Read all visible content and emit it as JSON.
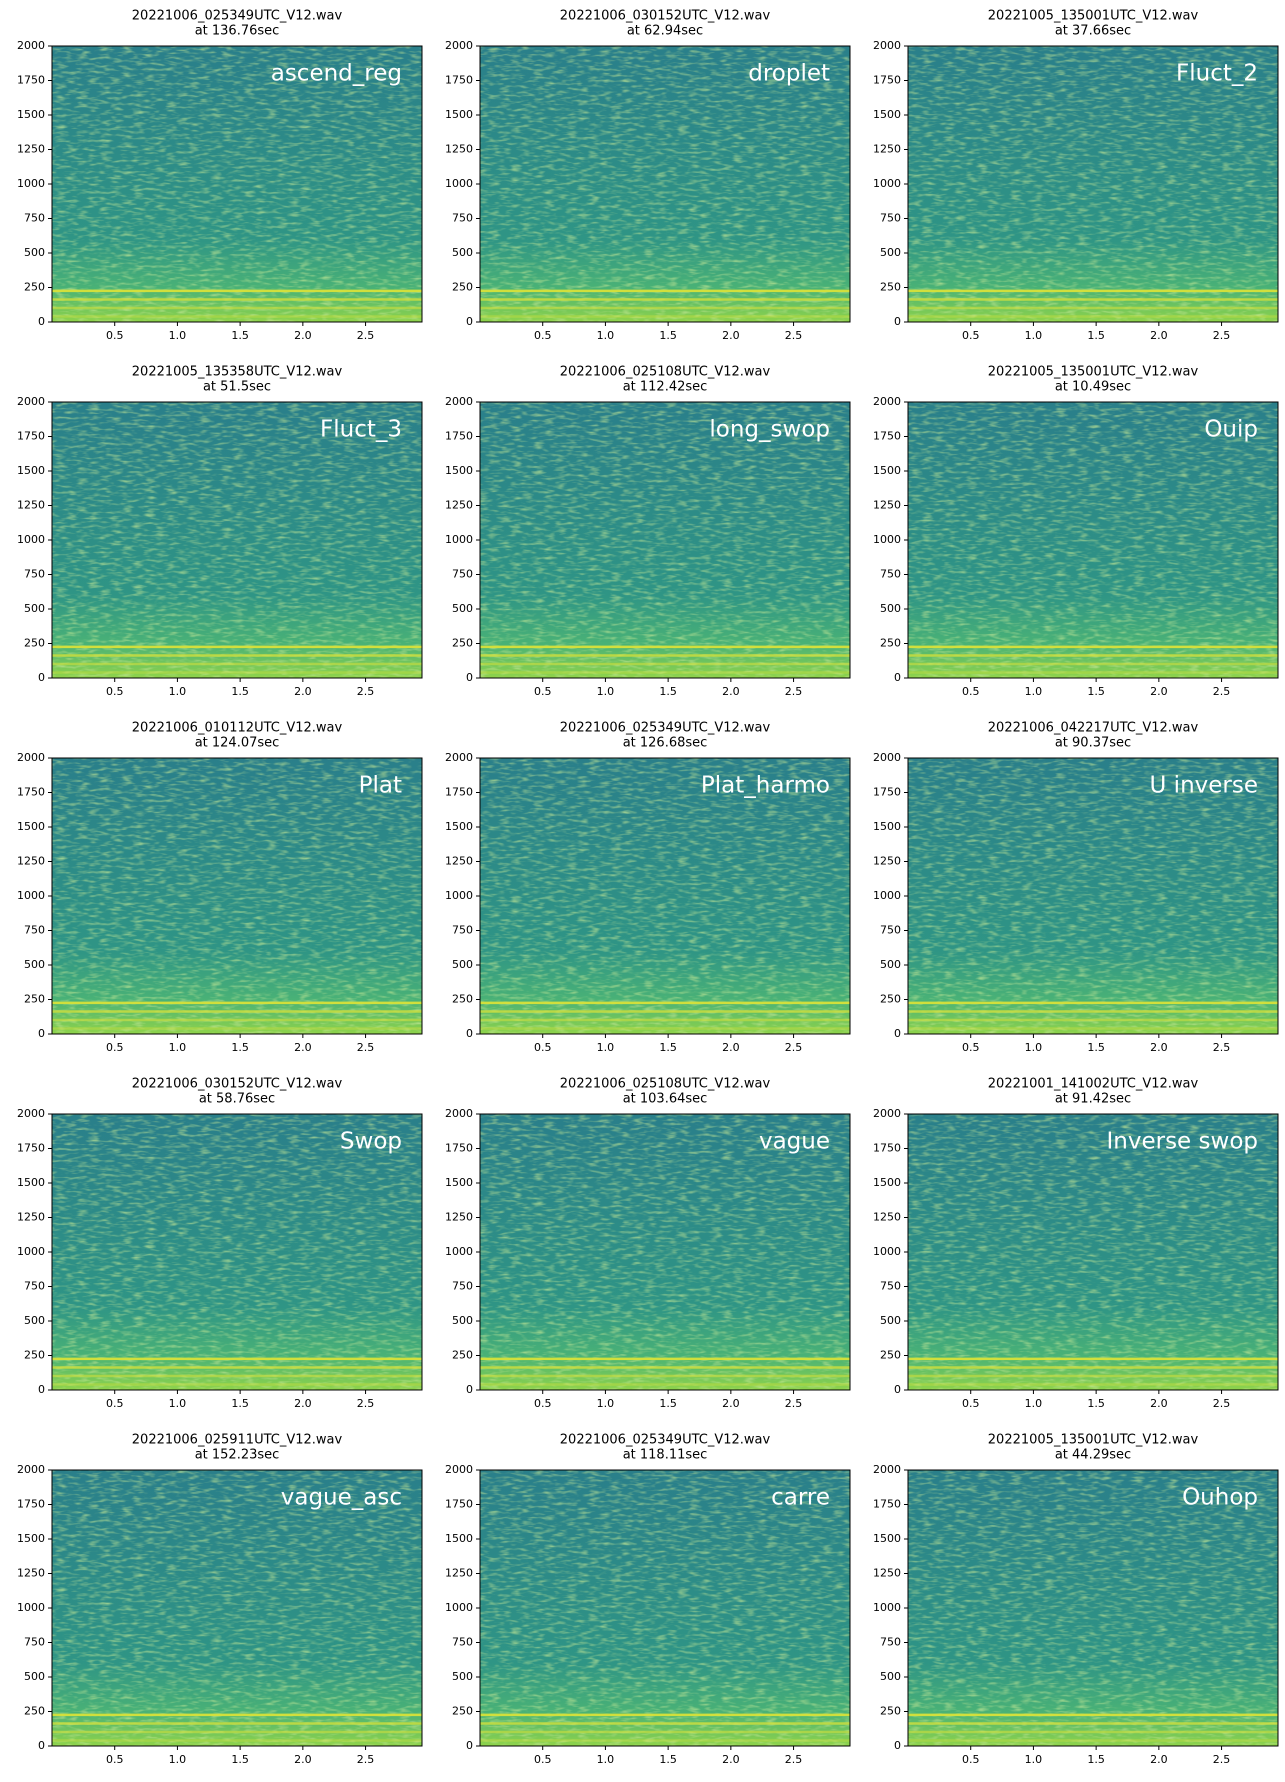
{
  "chart_data": [
    {
      "type": "spectrogram",
      "title": "20221006_025349UTC_V12.wav",
      "subtitle": "at 136.76sec",
      "annotation": "ascend_reg",
      "xlim": [
        0,
        2.95
      ],
      "ylim": [
        0,
        2000
      ],
      "xticks": [
        0.5,
        {
          "value": 1,
          "label": "1.0"
        },
        1.5,
        {
          "value": 2,
          "label": "2.0"
        },
        2.5
      ],
      "yticks": [
        0,
        250,
        500,
        750,
        1000,
        1250,
        1500,
        1750,
        2000
      ]
    },
    {
      "type": "spectrogram",
      "title": "20221006_030152UTC_V12.wav",
      "subtitle": "at 62.94sec",
      "annotation": "droplet",
      "xlim": [
        0,
        2.95
      ],
      "ylim": [
        0,
        2000
      ],
      "xticks": [
        0.5,
        {
          "value": 1,
          "label": "1.0"
        },
        1.5,
        {
          "value": 2,
          "label": "2.0"
        },
        2.5
      ],
      "yticks": [
        0,
        250,
        500,
        750,
        1000,
        1250,
        1500,
        1750,
        2000
      ]
    },
    {
      "type": "spectrogram",
      "title": "20221005_135001UTC_V12.wav",
      "subtitle": "at 37.66sec",
      "annotation": "Fluct_2",
      "xlim": [
        0,
        2.95
      ],
      "ylim": [
        0,
        2000
      ],
      "xticks": [
        0.5,
        {
          "value": 1,
          "label": "1.0"
        },
        1.5,
        {
          "value": 2,
          "label": "2.0"
        },
        2.5
      ],
      "yticks": [
        0,
        250,
        500,
        750,
        1000,
        1250,
        1500,
        1750,
        2000
      ]
    },
    {
      "type": "spectrogram",
      "title": "20221005_135358UTC_V12.wav",
      "subtitle": "at 51.5sec",
      "annotation": "Fluct_3",
      "xlim": [
        0,
        2.95
      ],
      "ylim": [
        0,
        2000
      ],
      "xticks": [
        0.5,
        {
          "value": 1,
          "label": "1.0"
        },
        1.5,
        {
          "value": 2,
          "label": "2.0"
        },
        2.5
      ],
      "yticks": [
        0,
        250,
        500,
        750,
        1000,
        1250,
        1500,
        1750,
        2000
      ]
    },
    {
      "type": "spectrogram",
      "title": "20221006_025108UTC_V12.wav",
      "subtitle": "at 112.42sec",
      "annotation": "long_swop",
      "xlim": [
        0,
        2.95
      ],
      "ylim": [
        0,
        2000
      ],
      "xticks": [
        0.5,
        {
          "value": 1,
          "label": "1.0"
        },
        1.5,
        {
          "value": 2,
          "label": "2.0"
        },
        2.5
      ],
      "yticks": [
        0,
        250,
        500,
        750,
        1000,
        1250,
        1500,
        1750,
        2000
      ]
    },
    {
      "type": "spectrogram",
      "title": "20221005_135001UTC_V12.wav",
      "subtitle": "at 10.49sec",
      "annotation": "Ouip",
      "xlim": [
        0,
        2.95
      ],
      "ylim": [
        0,
        2000
      ],
      "xticks": [
        0.5,
        {
          "value": 1,
          "label": "1.0"
        },
        1.5,
        {
          "value": 2,
          "label": "2.0"
        },
        2.5
      ],
      "yticks": [
        0,
        250,
        500,
        750,
        1000,
        1250,
        1500,
        1750,
        2000
      ]
    },
    {
      "type": "spectrogram",
      "title": "20221006_010112UTC_V12.wav",
      "subtitle": "at 124.07sec",
      "annotation": "Plat",
      "xlim": [
        0,
        2.95
      ],
      "ylim": [
        0,
        2000
      ],
      "xticks": [
        0.5,
        {
          "value": 1,
          "label": "1.0"
        },
        1.5,
        {
          "value": 2,
          "label": "2.0"
        },
        2.5
      ],
      "yticks": [
        0,
        250,
        500,
        750,
        1000,
        1250,
        1500,
        1750,
        2000
      ]
    },
    {
      "type": "spectrogram",
      "title": "20221006_025349UTC_V12.wav",
      "subtitle": "at 126.68sec",
      "annotation": "Plat_harmo",
      "xlim": [
        0,
        2.95
      ],
      "ylim": [
        0,
        2000
      ],
      "xticks": [
        0.5,
        {
          "value": 1,
          "label": "1.0"
        },
        1.5,
        {
          "value": 2,
          "label": "2.0"
        },
        2.5
      ],
      "yticks": [
        0,
        250,
        500,
        750,
        1000,
        1250,
        1500,
        1750,
        2000
      ]
    },
    {
      "type": "spectrogram",
      "title": "20221006_042217UTC_V12.wav",
      "subtitle": "at 90.37sec",
      "annotation": "U inverse",
      "xlim": [
        0,
        2.95
      ],
      "ylim": [
        0,
        2000
      ],
      "xticks": [
        0.5,
        {
          "value": 1,
          "label": "1.0"
        },
        1.5,
        {
          "value": 2,
          "label": "2.0"
        },
        2.5
      ],
      "yticks": [
        0,
        250,
        500,
        750,
        1000,
        1250,
        1500,
        1750,
        2000
      ]
    },
    {
      "type": "spectrogram",
      "title": "20221006_030152UTC_V12.wav",
      "subtitle": "at 58.76sec",
      "annotation": "Swop",
      "xlim": [
        0,
        2.95
      ],
      "ylim": [
        0,
        2000
      ],
      "xticks": [
        0.5,
        {
          "value": 1,
          "label": "1.0"
        },
        1.5,
        {
          "value": 2,
          "label": "2.0"
        },
        2.5
      ],
      "yticks": [
        0,
        250,
        500,
        750,
        1000,
        1250,
        1500,
        1750,
        2000
      ]
    },
    {
      "type": "spectrogram",
      "title": "20221006_025108UTC_V12.wav",
      "subtitle": "at 103.64sec",
      "annotation": "vague",
      "xlim": [
        0,
        2.95
      ],
      "ylim": [
        0,
        2000
      ],
      "xticks": [
        0.5,
        {
          "value": 1,
          "label": "1.0"
        },
        1.5,
        {
          "value": 2,
          "label": "2.0"
        },
        2.5
      ],
      "yticks": [
        0,
        250,
        500,
        750,
        1000,
        1250,
        1500,
        1750,
        2000
      ]
    },
    {
      "type": "spectrogram",
      "title": "20221001_141002UTC_V12.wav",
      "subtitle": "at 91.42sec",
      "annotation": "Inverse swop",
      "xlim": [
        0,
        2.95
      ],
      "ylim": [
        0,
        2000
      ],
      "xticks": [
        0.5,
        {
          "value": 1,
          "label": "1.0"
        },
        1.5,
        {
          "value": 2,
          "label": "2.0"
        },
        2.5
      ],
      "yticks": [
        0,
        250,
        500,
        750,
        1000,
        1250,
        1500,
        1750,
        2000
      ]
    },
    {
      "type": "spectrogram",
      "title": "20221006_025911UTC_V12.wav",
      "subtitle": "at 152.23sec",
      "annotation": "vague_asc",
      "xlim": [
        0,
        2.95
      ],
      "ylim": [
        0,
        2000
      ],
      "xticks": [
        0.5,
        {
          "value": 1,
          "label": "1.0"
        },
        1.5,
        {
          "value": 2,
          "label": "2.0"
        },
        2.5
      ],
      "yticks": [
        0,
        250,
        500,
        750,
        1000,
        1250,
        1500,
        1750,
        2000
      ]
    },
    {
      "type": "spectrogram",
      "title": "20221006_025349UTC_V12.wav",
      "subtitle": "at 118.11sec",
      "annotation": "carre",
      "xlim": [
        0,
        2.95
      ],
      "ylim": [
        0,
        2000
      ],
      "xticks": [
        0.5,
        {
          "value": 1,
          "label": "1.0"
        },
        1.5,
        {
          "value": 2,
          "label": "2.0"
        },
        2.5
      ],
      "yticks": [
        0,
        250,
        500,
        750,
        1000,
        1250,
        1500,
        1750,
        2000
      ]
    },
    {
      "type": "spectrogram",
      "title": "20221005_135001UTC_V12.wav",
      "subtitle": "at 44.29sec",
      "annotation": "Ouhop",
      "xlim": [
        0,
        2.95
      ],
      "ylim": [
        0,
        2000
      ],
      "xticks": [
        0.5,
        {
          "value": 1,
          "label": "1.0"
        },
        1.5,
        {
          "value": 2,
          "label": "2.0"
        },
        2.5
      ],
      "yticks": [
        0,
        250,
        500,
        750,
        1000,
        1250,
        1500,
        1750,
        2000
      ]
    }
  ]
}
